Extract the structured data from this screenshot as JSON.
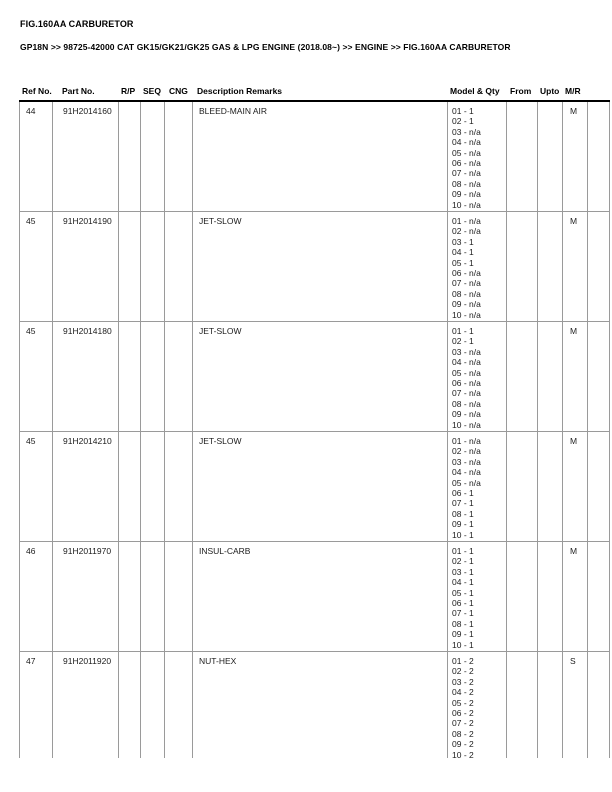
{
  "page": {
    "title": "FIG.160AA CARBURETOR",
    "breadcrumb": "GP18N >> 98725-42000 CAT GK15/GK21/GK25 GAS & LPG ENGINE (2018.08~) >> ENGINE >> FIG.160AA CARBURETOR"
  },
  "table": {
    "columns": [
      "Ref No.",
      "Part No.",
      "R/P",
      "SEQ",
      "CNG",
      "Description Remarks",
      "Model & Qty",
      "From",
      "Upto",
      "M/R"
    ],
    "rows": [
      {
        "ref_no": "44",
        "part_no": "91H2014160",
        "rp": "",
        "seq": "",
        "cng": "",
        "description": "BLEED-MAIN AIR",
        "model_qty": [
          "01 - 1",
          "02 - 1",
          "03 - n/a",
          "04 - n/a",
          "05 - n/a",
          "06 - n/a",
          "07 - n/a",
          "08 - n/a",
          "09 - n/a",
          "10 - n/a"
        ],
        "from": "",
        "upto": "",
        "mr": "M"
      },
      {
        "ref_no": "45",
        "part_no": "91H2014190",
        "rp": "",
        "seq": "",
        "cng": "",
        "description": "JET-SLOW",
        "model_qty": [
          "01 - n/a",
          "02 - n/a",
          "03 - 1",
          "04 - 1",
          "05 - 1",
          "06 - n/a",
          "07 - n/a",
          "08 - n/a",
          "09 - n/a",
          "10 - n/a"
        ],
        "from": "",
        "upto": "",
        "mr": "M"
      },
      {
        "ref_no": "45",
        "part_no": "91H2014180",
        "rp": "",
        "seq": "",
        "cng": "",
        "description": "JET-SLOW",
        "model_qty": [
          "01 - 1",
          "02 - 1",
          "03 - n/a",
          "04 - n/a",
          "05 - n/a",
          "06 - n/a",
          "07 - n/a",
          "08 - n/a",
          "09 - n/a",
          "10 - n/a"
        ],
        "from": "",
        "upto": "",
        "mr": "M"
      },
      {
        "ref_no": "45",
        "part_no": "91H2014210",
        "rp": "",
        "seq": "",
        "cng": "",
        "description": "JET-SLOW",
        "model_qty": [
          "01 - n/a",
          "02 - n/a",
          "03 - n/a",
          "04 - n/a",
          "05 - n/a",
          "06 - 1",
          "07 - 1",
          "08 - 1",
          "09 - 1",
          "10 - 1"
        ],
        "from": "",
        "upto": "",
        "mr": "M"
      },
      {
        "ref_no": "46",
        "part_no": "91H2011970",
        "rp": "",
        "seq": "",
        "cng": "",
        "description": "INSUL-CARB",
        "model_qty": [
          "01 - 1",
          "02 - 1",
          "03 - 1",
          "04 - 1",
          "05 - 1",
          "06 - 1",
          "07 - 1",
          "08 - 1",
          "09 - 1",
          "10 - 1"
        ],
        "from": "",
        "upto": "",
        "mr": "M"
      },
      {
        "ref_no": "47",
        "part_no": "91H2011920",
        "rp": "",
        "seq": "",
        "cng": "",
        "description": "NUT-HEX",
        "model_qty": [
          "01 - 2",
          "02 - 2",
          "03 - 2",
          "04 - 2",
          "05 - 2",
          "06 - 2",
          "07 - 2",
          "08 - 2",
          "09 - 2",
          "10 - 2"
        ],
        "from": "",
        "upto": "",
        "mr": "S"
      }
    ]
  }
}
